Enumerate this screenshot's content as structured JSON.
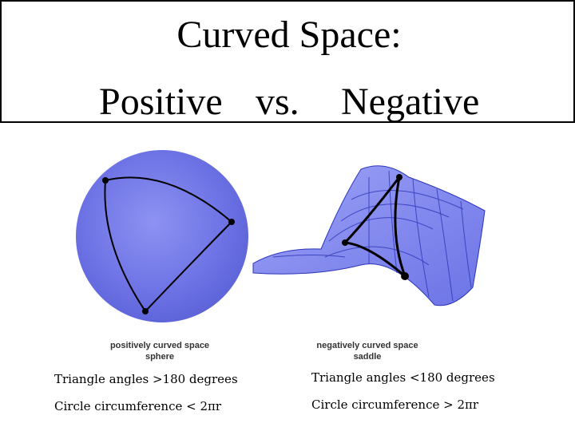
{
  "title": {
    "line1": "Curved Space:",
    "positive": "Positive",
    "vs": "vs.",
    "negative": "Negative"
  },
  "positive": {
    "caption_line1": "positively curved space",
    "caption_line2": "sphere",
    "triangle_fact": "Triangle angles >180 degrees",
    "circle_fact": "Circle circumference < 2πr"
  },
  "negative": {
    "caption_line1": "negatively curved space",
    "caption_line2": "saddle",
    "triangle_fact": "Triangle angles <180 degrees",
    "circle_fact": "Circle circumference > 2πr"
  },
  "colors": {
    "sphere": "#6f76e8",
    "saddle": "#7f86f0",
    "grid": "#2b35b8",
    "triangle": "#000000"
  }
}
